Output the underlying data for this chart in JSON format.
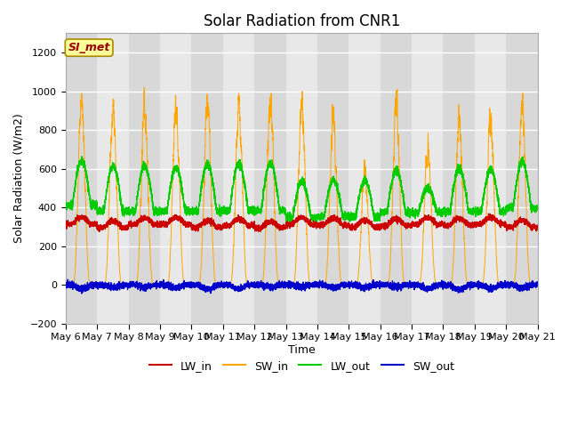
{
  "title": "Solar Radiation from CNR1",
  "xlabel": "Time",
  "ylabel": "Solar Radiation (W/m2)",
  "ylim": [
    -200,
    1300
  ],
  "yticks": [
    -200,
    0,
    200,
    400,
    600,
    800,
    1000,
    1200
  ],
  "n_days": 15,
  "n_points_per_day": 480,
  "date_labels": [
    "May 6",
    "May 7",
    "May 8",
    "May 9",
    "May 10",
    "May 11",
    "May 12",
    "May 13",
    "May 14",
    "May 15",
    "May 16",
    "May 17",
    "May 18",
    "May 19",
    "May 20",
    "May 21"
  ],
  "colors": {
    "LW_in": "#cc0000",
    "SW_in": "#ffa500",
    "LW_out": "#00cc00",
    "SW_out": "#0000cc"
  },
  "legend_label": "SI_met",
  "legend_box_color": "#ffff99",
  "legend_box_edge": "#aa8800",
  "legend_text_color": "#990000",
  "band_colors": [
    "#d8d8d8",
    "#e8e8e8"
  ],
  "grid_color": "#ffffff",
  "title_fontsize": 12,
  "axis_label_fontsize": 9,
  "tick_fontsize": 8,
  "legend_fontsize": 9
}
